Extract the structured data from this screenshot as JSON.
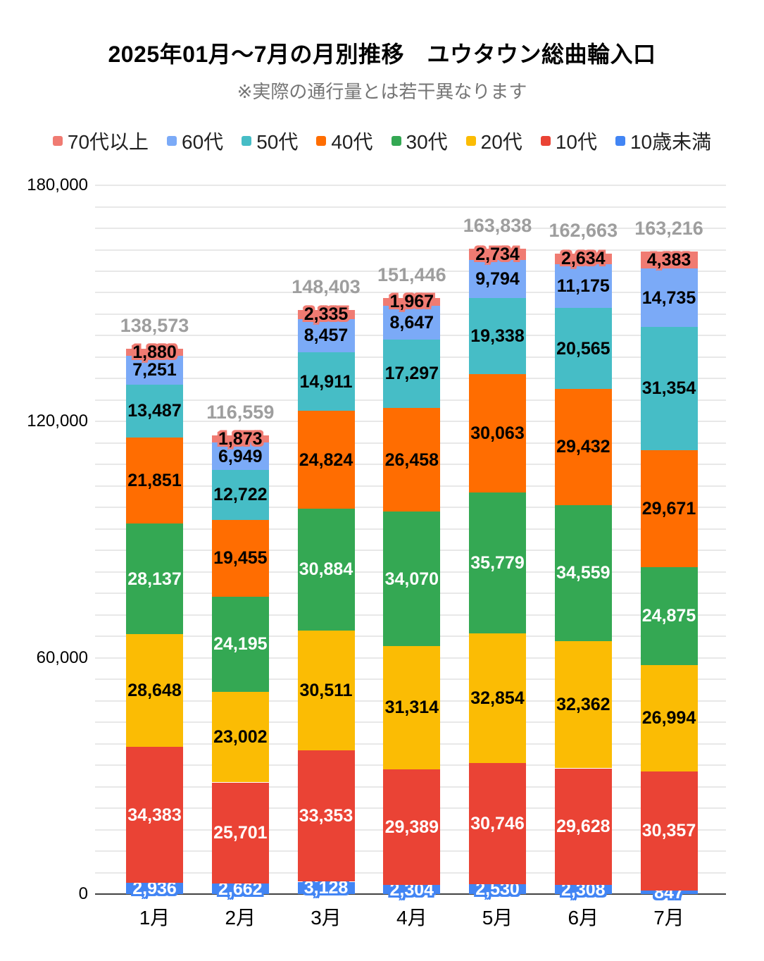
{
  "title": "2025年01月〜7月の月別推移　ユウタウン総曲輪入口",
  "subtitle": "※実際の通行量とは若干異なります",
  "chart_data": {
    "type": "bar",
    "variant": "stacked-vertical",
    "categories": [
      "1月",
      "2月",
      "3月",
      "4月",
      "5月",
      "6月",
      "7月"
    ],
    "series": [
      {
        "id": "under-10",
        "name": "10歳未満",
        "color": "#4285F4",
        "label_color": "#ffffff",
        "halo": true,
        "values": [
          2936,
          2662,
          3128,
          2304,
          2530,
          2308,
          847
        ]
      },
      {
        "id": "teens",
        "name": "10代",
        "color": "#EA4335",
        "label_color": "#ffffff",
        "halo": false,
        "values": [
          34383,
          25701,
          33353,
          29389,
          30746,
          29628,
          30357
        ]
      },
      {
        "id": "twenties",
        "name": "20代",
        "color": "#FBBC04",
        "label_color": "#000000",
        "halo": false,
        "values": [
          28648,
          23002,
          30511,
          31314,
          32854,
          32362,
          26994
        ]
      },
      {
        "id": "thirties",
        "name": "30代",
        "color": "#34A853",
        "label_color": "#ffffff",
        "halo": false,
        "values": [
          28137,
          24195,
          30884,
          34070,
          35779,
          34559,
          24875
        ]
      },
      {
        "id": "forties",
        "name": "40代",
        "color": "#FF6D01",
        "label_color": "#000000",
        "halo": false,
        "values": [
          21851,
          19455,
          24824,
          26458,
          30063,
          29432,
          29671
        ]
      },
      {
        "id": "fifties",
        "name": "50代",
        "color": "#46BDC6",
        "label_color": "#000000",
        "halo": false,
        "values": [
          13487,
          12722,
          14911,
          17297,
          19338,
          20565,
          31354
        ]
      },
      {
        "id": "sixties",
        "name": "60代",
        "color": "#7BAAF7",
        "label_color": "#000000",
        "halo": false,
        "values": [
          7251,
          6949,
          8457,
          8647,
          9794,
          11175,
          14735
        ]
      },
      {
        "id": "seventies-plus",
        "name": "70代以上",
        "color": "#F07B72",
        "label_color": "#000000",
        "halo": true,
        "values": [
          1880,
          1873,
          2335,
          1967,
          2734,
          2634,
          4383
        ]
      }
    ],
    "totals": [
      138573,
      116559,
      148403,
      151446,
      163838,
      162663,
      163216
    ],
    "legend_order": [
      "70代以上",
      "60代",
      "50代",
      "40代",
      "30代",
      "20代",
      "10代",
      "10歳未満"
    ],
    "y_axis": {
      "min": 0,
      "max": 180000,
      "ticks": [
        {
          "value": 0,
          "label": "0"
        },
        {
          "value": 60000,
          "label": "60,000"
        },
        {
          "value": 120000,
          "label": "120,000"
        },
        {
          "value": 180000,
          "label": "180,000"
        }
      ],
      "minor_divisions": 33,
      "gridlines": true
    },
    "legend_position": "top",
    "colors": {
      "gridline": "#e8e8e8",
      "axis_line": "#424242",
      "total_label": "#9e9e9e",
      "subtitle": "#757575",
      "title": "#000000"
    }
  }
}
